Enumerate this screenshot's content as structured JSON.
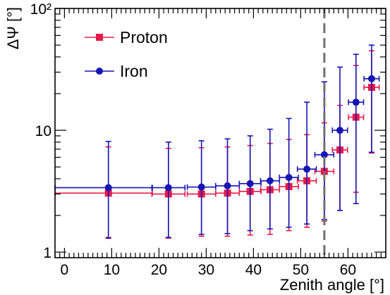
{
  "chart_data": {
    "type": "scatter",
    "xlabel": "Zenith angle [°]",
    "ylabel": "ΔΨ [°]",
    "xlim": [
      -2,
      68
    ],
    "ylim": [
      0.9,
      100
    ],
    "yscale": "log",
    "x_ticks": [
      0,
      10,
      20,
      30,
      40,
      50,
      60
    ],
    "x_tick_labels": [
      "0",
      "10",
      "20",
      "30",
      "40",
      "50",
      "60"
    ],
    "y_tick_labels": [
      "1",
      "10",
      "10²"
    ],
    "grid": false,
    "legend_position": "top-left",
    "reference_line": {
      "x": 55,
      "style": "dashed",
      "color": "#707070"
    },
    "series": [
      {
        "name": "Proton",
        "color": "#e8194a",
        "marker": "square",
        "x": [
          9.3,
          22.0,
          29.0,
          34.5,
          39.3,
          43.5,
          47.5,
          51.3,
          55.0,
          58.3,
          61.7,
          65.0
        ],
        "x_err": [
          [
            11.3,
            9.3
          ],
          [
            3.5,
            3.5
          ],
          [
            3.0,
            3.0
          ],
          [
            2.5,
            2.5
          ],
          [
            2.3,
            2.3
          ],
          [
            2.0,
            2.0
          ],
          [
            2.0,
            2.0
          ],
          [
            2.0,
            2.0
          ],
          [
            2.0,
            2.0
          ],
          [
            1.6,
            1.6
          ],
          [
            1.6,
            1.6
          ],
          [
            1.6,
            1.6
          ]
        ],
        "y": [
          3.05,
          3.0,
          3.0,
          3.05,
          3.15,
          3.25,
          3.45,
          3.85,
          4.6,
          6.9,
          12.8,
          22.5
        ],
        "y_err_low": [
          1.32,
          1.3,
          1.35,
          1.35,
          1.38,
          1.4,
          1.5,
          1.6,
          1.8,
          2.2,
          3.1,
          6.5
        ],
        "y_err_high": [
          7.3,
          7.1,
          7.2,
          7.3,
          7.5,
          7.8,
          8.4,
          9.2,
          11.5,
          16.0,
          34.0,
          45.0
        ]
      },
      {
        "name": "Iron",
        "color": "#1515b5",
        "marker": "circle",
        "x": [
          9.3,
          22.0,
          29.0,
          34.5,
          39.3,
          43.5,
          47.5,
          51.3,
          55.0,
          58.3,
          61.7,
          65.0
        ],
        "x_err": [
          [
            11.3,
            9.3
          ],
          [
            3.5,
            3.5
          ],
          [
            3.0,
            3.0
          ],
          [
            2.5,
            2.5
          ],
          [
            2.3,
            2.3
          ],
          [
            2.0,
            2.0
          ],
          [
            2.0,
            2.0
          ],
          [
            2.0,
            2.0
          ],
          [
            2.0,
            2.0
          ],
          [
            1.6,
            1.6
          ],
          [
            1.6,
            1.6
          ],
          [
            1.6,
            1.6
          ]
        ],
        "y": [
          3.38,
          3.38,
          3.42,
          3.5,
          3.65,
          3.85,
          4.1,
          4.8,
          6.3,
          10.0,
          17.0,
          26.5
        ],
        "y_err_low": [
          1.3,
          1.32,
          1.4,
          1.42,
          1.5,
          1.55,
          1.6,
          1.7,
          1.85,
          2.2,
          2.5,
          6.6
        ],
        "y_err_high": [
          8.1,
          8.0,
          8.2,
          8.5,
          9.0,
          10.2,
          12.5,
          17.0,
          25.0,
          33.0,
          42.0,
          50.0
        ]
      }
    ]
  }
}
